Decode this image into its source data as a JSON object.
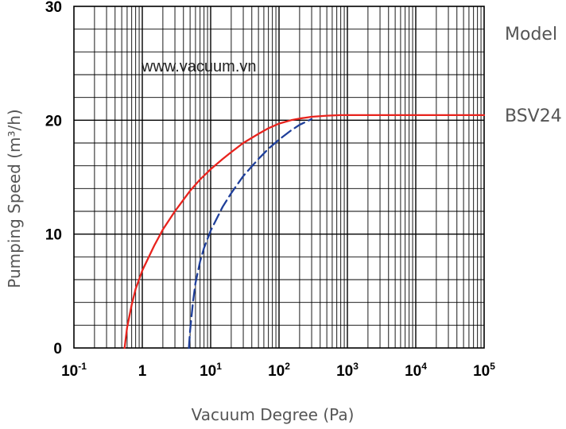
{
  "chart_data": {
    "type": "line",
    "x_scale": "log",
    "xlim": [
      0.1,
      100000
    ],
    "ylim": [
      0,
      30
    ],
    "grid": true,
    "xlabel": "Vacuum Degree (Pa)",
    "ylabel": "Pumping Speed (m³/h)",
    "x_tick_labels": [
      {
        "base": "10",
        "exp": "-1"
      },
      {
        "base": "1",
        "exp": ""
      },
      {
        "base": "10",
        "exp": "1"
      },
      {
        "base": "10",
        "exp": "2"
      },
      {
        "base": "10",
        "exp": "3"
      },
      {
        "base": "10",
        "exp": "4"
      },
      {
        "base": "10",
        "exp": "5"
      }
    ],
    "y_tick_labels": [
      "0",
      "10",
      "20",
      "30"
    ],
    "legend_header": "Model",
    "annotation": "www.vacuum.vn",
    "series": [
      {
        "name": "BSV24",
        "color": "#e8231d",
        "style": "solid",
        "x": [
          0.55,
          0.6,
          0.7,
          0.8,
          1,
          1.5,
          2,
          3,
          5,
          7,
          10,
          15,
          20,
          30,
          50,
          70,
          100,
          150,
          200,
          300,
          500,
          800,
          1000,
          10000,
          100000
        ],
        "y": [
          0,
          1.8,
          3.8,
          5.2,
          6.8,
          9.0,
          10.4,
          12.0,
          13.8,
          14.8,
          15.7,
          16.6,
          17.2,
          18.0,
          18.8,
          19.3,
          19.7,
          20.0,
          20.15,
          20.3,
          20.4,
          20.45,
          20.45,
          20.45,
          20.45
        ]
      },
      {
        "name": "",
        "color": "#1f3f9a",
        "style": "dashed",
        "x": [
          4.8,
          5,
          5.5,
          6,
          7,
          8,
          10,
          15,
          20,
          30,
          50,
          70,
          100,
          150,
          200,
          300
        ],
        "y": [
          0,
          1.5,
          4.0,
          5.7,
          7.6,
          8.8,
          10.3,
          12.4,
          13.6,
          15.1,
          16.6,
          17.5,
          18.3,
          19.1,
          19.6,
          20.1
        ]
      }
    ]
  }
}
